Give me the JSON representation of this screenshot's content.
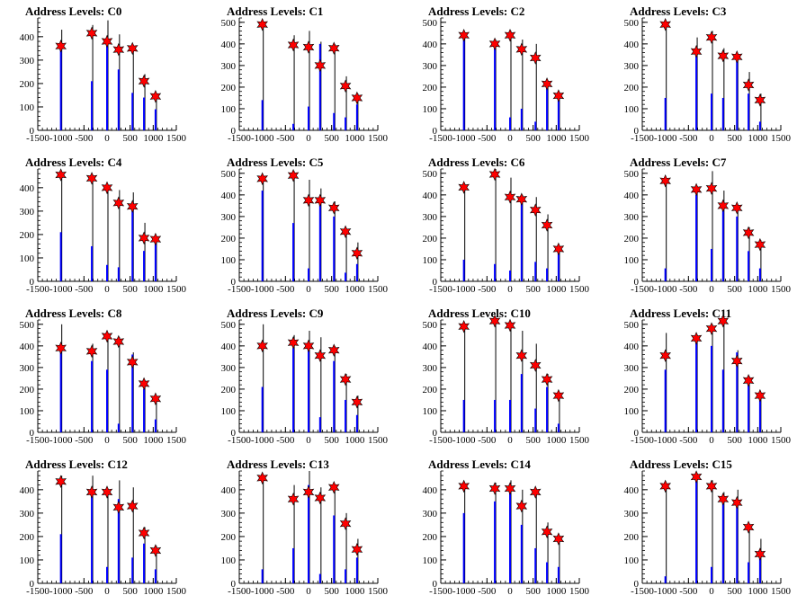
{
  "figure": {
    "colors": {
      "bar": "#0000ff",
      "spike": "#000000",
      "marker": "#ff0000",
      "axis": "#000000"
    }
  },
  "chart_data": [
    {
      "type": "bar",
      "title": "Address Levels: C0",
      "xlim": [
        -1500,
        1500
      ],
      "ylim": [
        0,
        480
      ],
      "yticks": [
        0,
        100,
        200,
        300,
        400
      ],
      "xticks": [
        -1500,
        -1000,
        -500,
        0,
        500,
        1000,
        1500
      ],
      "peaks": [
        {
          "x": -1000,
          "total": 430,
          "blue": 370,
          "marker": 360
        },
        {
          "x": -330,
          "total": 450,
          "blue": 210,
          "marker": 415
        },
        {
          "x": 0,
          "total": 470,
          "blue": 380,
          "marker": 380
        },
        {
          "x": 250,
          "total": 410,
          "blue": 260,
          "marker": 345
        },
        {
          "x": 550,
          "total": 360,
          "blue": 160,
          "marker": 350
        },
        {
          "x": 800,
          "total": 240,
          "blue": 140,
          "marker": 210
        },
        {
          "x": 1050,
          "total": 160,
          "blue": 90,
          "marker": 145
        }
      ]
    },
    {
      "type": "bar",
      "title": "Address Levels: C1",
      "xlim": [
        -1500,
        1500
      ],
      "ylim": [
        0,
        520
      ],
      "yticks": [
        0,
        100,
        200,
        300,
        400,
        500
      ],
      "xticks": [
        -1500,
        -1000,
        -500,
        0,
        500,
        1000,
        1500
      ],
      "peaks": [
        {
          "x": -1000,
          "total": 500,
          "blue": 140,
          "marker": 490
        },
        {
          "x": -330,
          "total": 440,
          "blue": 30,
          "marker": 395
        },
        {
          "x": 0,
          "total": 460,
          "blue": 110,
          "marker": 385
        },
        {
          "x": 250,
          "total": 410,
          "blue": 400,
          "marker": 300
        },
        {
          "x": 550,
          "total": 400,
          "blue": 80,
          "marker": 380
        },
        {
          "x": 800,
          "total": 250,
          "blue": 60,
          "marker": 205
        },
        {
          "x": 1050,
          "total": 170,
          "blue": 120,
          "marker": 150
        }
      ]
    },
    {
      "type": "bar",
      "title": "Address Levels: C2",
      "xlim": [
        -1500,
        1500
      ],
      "ylim": [
        0,
        520
      ],
      "yticks": [
        0,
        100,
        200,
        300,
        400,
        500
      ],
      "xticks": [
        -1500,
        -1000,
        -500,
        0,
        500,
        1000,
        1500
      ],
      "peaks": [
        {
          "x": -1000,
          "total": 450,
          "blue": 420,
          "marker": 440
        },
        {
          "x": -330,
          "total": 420,
          "blue": 380,
          "marker": 400
        },
        {
          "x": 0,
          "total": 460,
          "blue": 60,
          "marker": 440
        },
        {
          "x": 250,
          "total": 420,
          "blue": 100,
          "marker": 375
        },
        {
          "x": 550,
          "total": 400,
          "blue": 40,
          "marker": 335
        },
        {
          "x": 800,
          "total": 230,
          "blue": 200,
          "marker": 215
        },
        {
          "x": 1050,
          "total": 170,
          "blue": 140,
          "marker": 160
        }
      ]
    },
    {
      "type": "bar",
      "title": "Address Levels: C3",
      "xlim": [
        -1500,
        1500
      ],
      "ylim": [
        0,
        520
      ],
      "yticks": [
        0,
        100,
        200,
        300,
        400,
        500
      ],
      "xticks": [
        -1500,
        -1000,
        -500,
        0,
        500,
        1000,
        1500
      ],
      "peaks": [
        {
          "x": -1000,
          "total": 500,
          "blue": 150,
          "marker": 490
        },
        {
          "x": -330,
          "total": 430,
          "blue": 380,
          "marker": 365
        },
        {
          "x": 0,
          "total": 460,
          "blue": 170,
          "marker": 430
        },
        {
          "x": 250,
          "total": 380,
          "blue": 150,
          "marker": 345
        },
        {
          "x": 550,
          "total": 350,
          "blue": 340,
          "marker": 340
        },
        {
          "x": 800,
          "total": 270,
          "blue": 170,
          "marker": 210
        },
        {
          "x": 1050,
          "total": 170,
          "blue": 40,
          "marker": 140
        }
      ]
    },
    {
      "type": "bar",
      "title": "Address Levels: C4",
      "xlim": [
        -1500,
        1500
      ],
      "ylim": [
        0,
        480
      ],
      "yticks": [
        0,
        100,
        200,
        300,
        400
      ],
      "xticks": [
        -1500,
        -1000,
        -500,
        0,
        500,
        1000,
        1500
      ],
      "peaks": [
        {
          "x": -1000,
          "total": 460,
          "blue": 210,
          "marker": 455
        },
        {
          "x": -330,
          "total": 440,
          "blue": 150,
          "marker": 440
        },
        {
          "x": 0,
          "total": 410,
          "blue": 70,
          "marker": 400
        },
        {
          "x": 250,
          "total": 390,
          "blue": 60,
          "marker": 335
        },
        {
          "x": 550,
          "total": 380,
          "blue": 310,
          "marker": 320
        },
        {
          "x": 800,
          "total": 250,
          "blue": 130,
          "marker": 185
        },
        {
          "x": 1050,
          "total": 190,
          "blue": 170,
          "marker": 180
        }
      ]
    },
    {
      "type": "bar",
      "title": "Address Levels: C5",
      "xlim": [
        -1500,
        1500
      ],
      "ylim": [
        0,
        520
      ],
      "yticks": [
        0,
        100,
        200,
        300,
        400,
        500
      ],
      "xticks": [
        -1500,
        -1000,
        -500,
        0,
        500,
        1000,
        1500
      ],
      "peaks": [
        {
          "x": -1000,
          "total": 480,
          "blue": 420,
          "marker": 475
        },
        {
          "x": -330,
          "total": 510,
          "blue": 270,
          "marker": 490
        },
        {
          "x": 0,
          "total": 470,
          "blue": 60,
          "marker": 375
        },
        {
          "x": 250,
          "total": 430,
          "blue": 380,
          "marker": 375
        },
        {
          "x": 550,
          "total": 370,
          "blue": 300,
          "marker": 340
        },
        {
          "x": 800,
          "total": 240,
          "blue": 40,
          "marker": 230
        },
        {
          "x": 1050,
          "total": 180,
          "blue": 80,
          "marker": 130
        }
      ]
    },
    {
      "type": "bar",
      "title": "Address Levels: C6",
      "xlim": [
        -1500,
        1500
      ],
      "ylim": [
        0,
        520
      ],
      "yticks": [
        0,
        100,
        200,
        300,
        400,
        500
      ],
      "xticks": [
        -1500,
        -1000,
        -500,
        0,
        500,
        1000,
        1500
      ],
      "peaks": [
        {
          "x": -1000,
          "total": 450,
          "blue": 100,
          "marker": 435
        },
        {
          "x": -330,
          "total": 520,
          "blue": 80,
          "marker": 495
        },
        {
          "x": 0,
          "total": 480,
          "blue": 50,
          "marker": 390
        },
        {
          "x": 250,
          "total": 400,
          "blue": 360,
          "marker": 380
        },
        {
          "x": 550,
          "total": 390,
          "blue": 90,
          "marker": 330
        },
        {
          "x": 800,
          "total": 310,
          "blue": 60,
          "marker": 260
        },
        {
          "x": 1050,
          "total": 160,
          "blue": 130,
          "marker": 150
        }
      ]
    },
    {
      "type": "bar",
      "title": "Address Levels: C7",
      "xlim": [
        -1500,
        1500
      ],
      "ylim": [
        0,
        520
      ],
      "yticks": [
        0,
        100,
        200,
        300,
        400,
        500
      ],
      "xticks": [
        -1500,
        -1000,
        -500,
        0,
        500,
        1000,
        1500
      ],
      "peaks": [
        {
          "x": -1000,
          "total": 470,
          "blue": 60,
          "marker": 465
        },
        {
          "x": -330,
          "total": 440,
          "blue": 400,
          "marker": 425
        },
        {
          "x": 0,
          "total": 510,
          "blue": 150,
          "marker": 430
        },
        {
          "x": 250,
          "total": 420,
          "blue": 340,
          "marker": 350
        },
        {
          "x": 550,
          "total": 350,
          "blue": 300,
          "marker": 340
        },
        {
          "x": 800,
          "total": 250,
          "blue": 140,
          "marker": 225
        },
        {
          "x": 1050,
          "total": 190,
          "blue": 60,
          "marker": 170
        }
      ]
    },
    {
      "type": "bar",
      "title": "Address Levels: C8",
      "xlim": [
        -1500,
        1500
      ],
      "ylim": [
        0,
        520
      ],
      "yticks": [
        0,
        100,
        200,
        300,
        400,
        500
      ],
      "xticks": [
        -1500,
        -1000,
        -500,
        0,
        500,
        1000,
        1500
      ],
      "peaks": [
        {
          "x": -1000,
          "total": 500,
          "blue": 400,
          "marker": 390
        },
        {
          "x": -330,
          "total": 410,
          "blue": 330,
          "marker": 375
        },
        {
          "x": 0,
          "total": 460,
          "blue": 290,
          "marker": 445
        },
        {
          "x": 250,
          "total": 440,
          "blue": 40,
          "marker": 420
        },
        {
          "x": 550,
          "total": 370,
          "blue": 360,
          "marker": 325
        },
        {
          "x": 800,
          "total": 240,
          "blue": 200,
          "marker": 225
        },
        {
          "x": 1050,
          "total": 170,
          "blue": 60,
          "marker": 155
        }
      ]
    },
    {
      "type": "bar",
      "title": "Address Levels: C9",
      "xlim": [
        -1500,
        1500
      ],
      "ylim": [
        0,
        520
      ],
      "yticks": [
        0,
        100,
        200,
        300,
        400,
        500
      ],
      "xticks": [
        -1500,
        -1000,
        -500,
        0,
        500,
        1000,
        1500
      ],
      "peaks": [
        {
          "x": -1000,
          "total": 500,
          "blue": 210,
          "marker": 400
        },
        {
          "x": -330,
          "total": 450,
          "blue": 390,
          "marker": 415
        },
        {
          "x": 0,
          "total": 470,
          "blue": 390,
          "marker": 400
        },
        {
          "x": 250,
          "total": 440,
          "blue": 70,
          "marker": 355
        },
        {
          "x": 550,
          "total": 400,
          "blue": 330,
          "marker": 380
        },
        {
          "x": 800,
          "total": 270,
          "blue": 150,
          "marker": 245
        },
        {
          "x": 1050,
          "total": 170,
          "blue": 80,
          "marker": 140
        }
      ]
    },
    {
      "type": "bar",
      "title": "Address Levels: C10",
      "xlim": [
        -1500,
        1500
      ],
      "ylim": [
        0,
        520
      ],
      "yticks": [
        0,
        100,
        200,
        300,
        400,
        500
      ],
      "xticks": [
        -1500,
        -1000,
        -500,
        0,
        500,
        1000,
        1500
      ],
      "peaks": [
        {
          "x": -1000,
          "total": 500,
          "blue": 150,
          "marker": 490
        },
        {
          "x": -330,
          "total": 520,
          "blue": 150,
          "marker": 515
        },
        {
          "x": 0,
          "total": 510,
          "blue": 150,
          "marker": 495
        },
        {
          "x": 250,
          "total": 470,
          "blue": 270,
          "marker": 355
        },
        {
          "x": 550,
          "total": 410,
          "blue": 110,
          "marker": 310
        },
        {
          "x": 800,
          "total": 270,
          "blue": 210,
          "marker": 245
        },
        {
          "x": 1050,
          "total": 180,
          "blue": 40,
          "marker": 170
        }
      ]
    },
    {
      "type": "bar",
      "title": "Address Levels: C11",
      "xlim": [
        -1500,
        1500
      ],
      "ylim": [
        0,
        520
      ],
      "yticks": [
        0,
        100,
        200,
        300,
        400,
        500
      ],
      "xticks": [
        -1500,
        -1000,
        -500,
        0,
        500,
        1000,
        1500
      ],
      "peaks": [
        {
          "x": -1000,
          "total": 460,
          "blue": 290,
          "marker": 355
        },
        {
          "x": -330,
          "total": 440,
          "blue": 420,
          "marker": 435
        },
        {
          "x": 0,
          "total": 500,
          "blue": 400,
          "marker": 480
        },
        {
          "x": 250,
          "total": 520,
          "blue": 290,
          "marker": 515
        },
        {
          "x": 550,
          "total": 380,
          "blue": 370,
          "marker": 330
        },
        {
          "x": 800,
          "total": 260,
          "blue": 250,
          "marker": 240
        },
        {
          "x": 1050,
          "total": 180,
          "blue": 160,
          "marker": 170
        }
      ]
    },
    {
      "type": "bar",
      "title": "Address Levels: C12",
      "xlim": [
        -1500,
        1500
      ],
      "ylim": [
        0,
        480
      ],
      "yticks": [
        0,
        100,
        200,
        300,
        400
      ],
      "xticks": [
        -1500,
        -1000,
        -500,
        0,
        500,
        1000,
        1500
      ],
      "peaks": [
        {
          "x": -1000,
          "total": 460,
          "blue": 210,
          "marker": 435
        },
        {
          "x": -330,
          "total": 460,
          "blue": 390,
          "marker": 390
        },
        {
          "x": 0,
          "total": 400,
          "blue": 70,
          "marker": 390
        },
        {
          "x": 250,
          "total": 440,
          "blue": 360,
          "marker": 325
        },
        {
          "x": 550,
          "total": 410,
          "blue": 110,
          "marker": 330
        },
        {
          "x": 800,
          "total": 240,
          "blue": 170,
          "marker": 215
        },
        {
          "x": 1050,
          "total": 160,
          "blue": 60,
          "marker": 140
        }
      ]
    },
    {
      "type": "bar",
      "title": "Address Levels: C13",
      "xlim": [
        -1500,
        1500
      ],
      "ylim": [
        0,
        480
      ],
      "yticks": [
        0,
        100,
        200,
        300,
        400
      ],
      "xticks": [
        -1500,
        -1000,
        -500,
        0,
        500,
        1000,
        1500
      ],
      "peaks": [
        {
          "x": -1000,
          "total": 460,
          "blue": 60,
          "marker": 450
        },
        {
          "x": -330,
          "total": 420,
          "blue": 150,
          "marker": 360
        },
        {
          "x": 0,
          "total": 480,
          "blue": 420,
          "marker": 390
        },
        {
          "x": 250,
          "total": 410,
          "blue": 40,
          "marker": 365
        },
        {
          "x": 550,
          "total": 420,
          "blue": 290,
          "marker": 410
        },
        {
          "x": 800,
          "total": 300,
          "blue": 60,
          "marker": 255
        },
        {
          "x": 1050,
          "total": 190,
          "blue": 110,
          "marker": 145
        }
      ]
    },
    {
      "type": "bar",
      "title": "Address Levels: C14",
      "xlim": [
        -1500,
        1500
      ],
      "ylim": [
        0,
        480
      ],
      "yticks": [
        0,
        100,
        200,
        300,
        400
      ],
      "xticks": [
        -1500,
        -1000,
        -500,
        0,
        500,
        1000,
        1500
      ],
      "peaks": [
        {
          "x": -1000,
          "total": 420,
          "blue": 300,
          "marker": 415
        },
        {
          "x": -330,
          "total": 430,
          "blue": 350,
          "marker": 405
        },
        {
          "x": 0,
          "total": 440,
          "blue": 390,
          "marker": 405
        },
        {
          "x": 250,
          "total": 400,
          "blue": 250,
          "marker": 330
        },
        {
          "x": 550,
          "total": 390,
          "blue": 150,
          "marker": 390
        },
        {
          "x": 800,
          "total": 260,
          "blue": 90,
          "marker": 220
        },
        {
          "x": 1050,
          "total": 200,
          "blue": 70,
          "marker": 190
        }
      ]
    },
    {
      "type": "bar",
      "title": "Address Levels: C15",
      "xlim": [
        -1500,
        1500
      ],
      "ylim": [
        0,
        480
      ],
      "yticks": [
        0,
        100,
        200,
        300,
        400
      ],
      "xticks": [
        -1500,
        -1000,
        -500,
        0,
        500,
        1000,
        1500
      ],
      "peaks": [
        {
          "x": -1000,
          "total": 420,
          "blue": 30,
          "marker": 415
        },
        {
          "x": -330,
          "total": 470,
          "blue": 440,
          "marker": 455
        },
        {
          "x": 0,
          "total": 440,
          "blue": 70,
          "marker": 415
        },
        {
          "x": 250,
          "total": 390,
          "blue": 370,
          "marker": 360
        },
        {
          "x": 550,
          "total": 400,
          "blue": 330,
          "marker": 345
        },
        {
          "x": 800,
          "total": 250,
          "blue": 90,
          "marker": 240
        },
        {
          "x": 1050,
          "total": 190,
          "blue": 110,
          "marker": 125
        }
      ]
    }
  ]
}
